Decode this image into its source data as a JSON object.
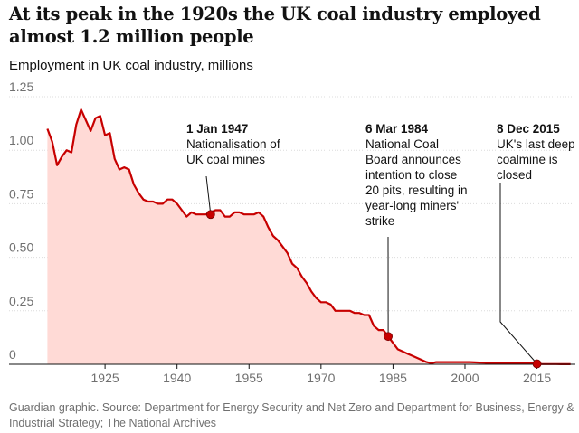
{
  "headline": "At its peak in the 1920s the UK coal industry employed almost 1.2 million people",
  "subtitle": "Employment in UK coal industry, millions",
  "source": "Guardian graphic. Source: Department for Energy Security and Net Zero and Department for Business, Energy & Industrial Strategy; The National Archives",
  "colors": {
    "line": "#c70000",
    "area": "#ffdad6",
    "marker": "#c70000",
    "grid": "#dcdcdc",
    "axis": "#121212",
    "annotation_line": "#121212"
  },
  "chart_data": {
    "type": "area",
    "title": "At its peak in the 1920s the UK coal industry employed almost 1.2 million people",
    "subtitle": "Employment in UK coal industry, millions",
    "xlabel": "",
    "ylabel": "Employment in UK coal industry, millions",
    "xlim": [
      1905,
      2023
    ],
    "ylim": [
      0,
      1.25
    ],
    "grid": true,
    "x_ticks": [
      1925,
      1940,
      1955,
      1970,
      1985,
      2000,
      2015
    ],
    "y_ticks": [
      0,
      0.25,
      0.5,
      0.75,
      1.0,
      1.25
    ],
    "y_tick_labels": [
      "0",
      "0.25",
      "0.50",
      "0.75",
      "1.00",
      "1.25"
    ],
    "x": [
      1913,
      1914,
      1915,
      1916,
      1917,
      1918,
      1919,
      1920,
      1921,
      1922,
      1923,
      1924,
      1925,
      1926,
      1927,
      1928,
      1929,
      1930,
      1931,
      1932,
      1933,
      1934,
      1935,
      1936,
      1937,
      1938,
      1939,
      1940,
      1941,
      1942,
      1943,
      1944,
      1945,
      1946,
      1947,
      1948,
      1949,
      1950,
      1951,
      1952,
      1953,
      1954,
      1955,
      1956,
      1957,
      1958,
      1959,
      1960,
      1961,
      1962,
      1963,
      1964,
      1965,
      1966,
      1967,
      1968,
      1969,
      1970,
      1971,
      1972,
      1973,
      1974,
      1975,
      1976,
      1977,
      1978,
      1979,
      1980,
      1981,
      1982,
      1983,
      1984,
      1985,
      1986,
      1987,
      1988,
      1989,
      1990,
      1991,
      1992,
      1993,
      1994,
      1995,
      1996,
      1997,
      1998,
      1999,
      2000,
      2001,
      2002,
      2003,
      2004,
      2005,
      2006,
      2007,
      2008,
      2009,
      2010,
      2011,
      2012,
      2013,
      2014,
      2015,
      2016,
      2017,
      2018,
      2019,
      2020,
      2021,
      2022
    ],
    "values": [
      1.1,
      1.04,
      0.93,
      0.97,
      1.0,
      0.99,
      1.12,
      1.19,
      1.14,
      1.09,
      1.15,
      1.16,
      1.07,
      1.08,
      0.96,
      0.91,
      0.92,
      0.91,
      0.84,
      0.8,
      0.77,
      0.76,
      0.76,
      0.75,
      0.75,
      0.77,
      0.77,
      0.75,
      0.72,
      0.69,
      0.71,
      0.7,
      0.7,
      0.7,
      0.71,
      0.72,
      0.72,
      0.69,
      0.69,
      0.71,
      0.71,
      0.7,
      0.7,
      0.7,
      0.71,
      0.69,
      0.64,
      0.6,
      0.58,
      0.55,
      0.52,
      0.47,
      0.45,
      0.41,
      0.38,
      0.34,
      0.31,
      0.29,
      0.29,
      0.28,
      0.25,
      0.25,
      0.25,
      0.25,
      0.24,
      0.24,
      0.23,
      0.23,
      0.18,
      0.16,
      0.16,
      0.13,
      0.1,
      0.07,
      0.06,
      0.05,
      0.04,
      0.03,
      0.02,
      0.01,
      0.005,
      0.01,
      0.01,
      0.01,
      0.01,
      0.01,
      0.01,
      0.01,
      0.01,
      0.009,
      0.008,
      0.007,
      0.006,
      0.006,
      0.006,
      0.006,
      0.006,
      0.006,
      0.006,
      0.006,
      0.005,
      0.004,
      0.002,
      0.001,
      0.001,
      0.001,
      0.001,
      0.0005,
      0.0005,
      0.0005
    ],
    "markers": [
      {
        "x": 1947,
        "y": 0.7
      },
      {
        "x": 1984,
        "y": 0.13
      },
      {
        "x": 2015,
        "y": 0.002
      }
    ],
    "annotations": [
      {
        "date": "1 Jan 1947",
        "lines": [
          "Nationalisation of",
          "UK coal mines"
        ]
      },
      {
        "date": "6 Mar 1984",
        "lines": [
          "National Coal",
          "Board announces",
          "intention to close",
          "20 pits, resulting in",
          "year-long miners'",
          "strike"
        ]
      },
      {
        "date": "8 Dec 2015",
        "lines": [
          "UK's last deep",
          "coalmine is",
          "closed"
        ]
      }
    ]
  }
}
